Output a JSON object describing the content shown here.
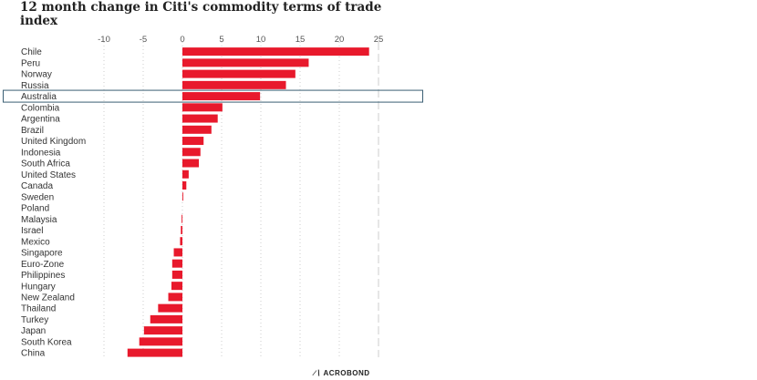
{
  "chart_data": {
    "type": "bar",
    "orientation": "horizontal",
    "title": "12 month change in Citi's commodity terms of trade index",
    "xlabel": "",
    "ylabel": "",
    "xlim": [
      -10,
      25
    ],
    "xticks": [
      -10,
      -5,
      0,
      5,
      10,
      15,
      20,
      25
    ],
    "tick_labels": [
      "-10",
      "-5",
      "0",
      "5",
      "10",
      "15",
      "20",
      "25"
    ],
    "grid": true,
    "highlighted_category": "Australia",
    "categories": [
      "Chile",
      "Peru",
      "Norway",
      "Russia",
      "Australia",
      "Colombia",
      "Argentina",
      "Brazil",
      "United Kingdom",
      "Indonesia",
      "South Africa",
      "United States",
      "Canada",
      "Sweden",
      "Poland",
      "Malaysia",
      "Israel",
      "Mexico",
      "Singapore",
      "Euro-Zone",
      "Philippines",
      "Hungary",
      "New Zealand",
      "Thailand",
      "Turkey",
      "Japan",
      "South Korea",
      "China"
    ],
    "values": [
      23.8,
      16.1,
      14.4,
      13.2,
      9.9,
      5.1,
      4.5,
      3.7,
      2.7,
      2.3,
      2.1,
      0.8,
      0.5,
      0.1,
      0.0,
      -0.1,
      -0.2,
      -0.3,
      -1.1,
      -1.3,
      -1.3,
      -1.4,
      -1.8,
      -3.1,
      -4.1,
      -4.9,
      -5.5,
      -7.0
    ],
    "colors": {
      "bar": "#e8192c",
      "highlight_box": "#3a5f74",
      "grid": "#cccccc"
    }
  },
  "footer": {
    "brand": "ACROBOND",
    "brand_mark": "∕∖"
  }
}
